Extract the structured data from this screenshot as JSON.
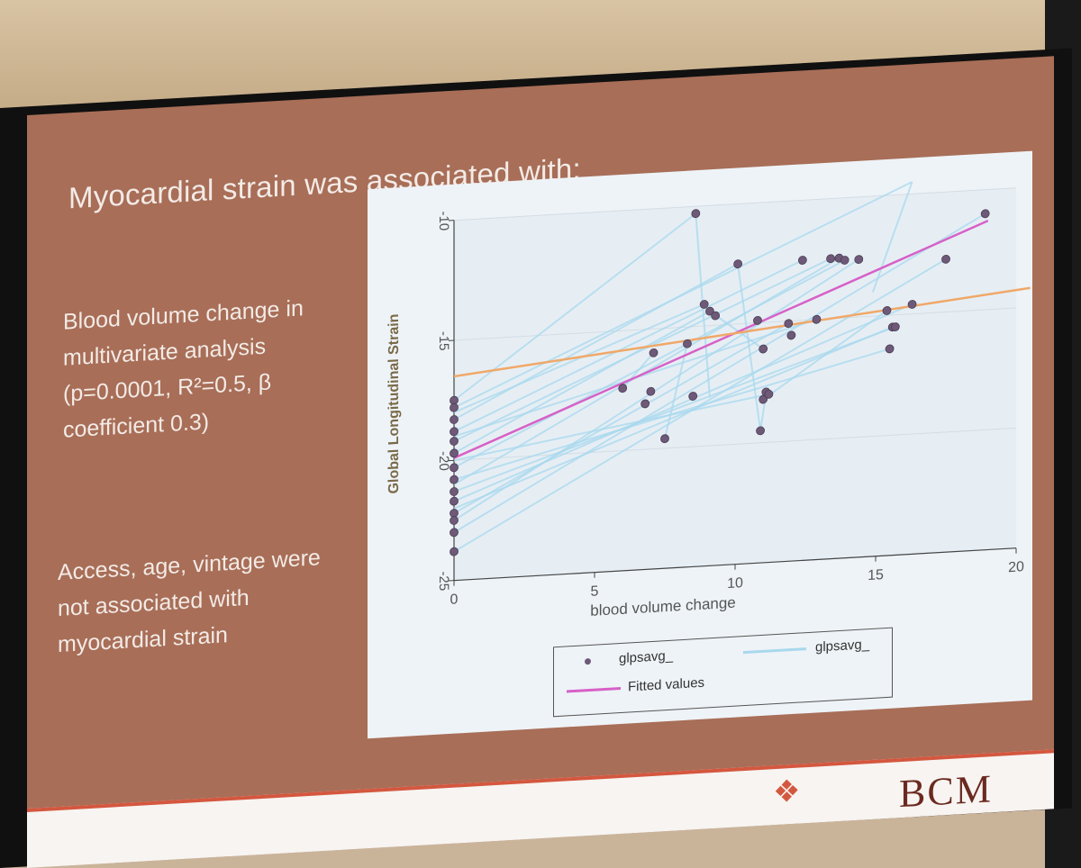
{
  "slide": {
    "heading": "Myocardial strain was associated with:",
    "bullet1": "Blood volume change in multivariate analysis (p=0.0001, R²=0.5, β coefficient 0.3)",
    "bullet2": "Access, age, vintage were not associated with myocardial strain",
    "footer_logo": "BCM",
    "colors": {
      "slide_bg": "#a86e58",
      "accent": "#d4573f"
    }
  },
  "chart_data": {
    "type": "scatter",
    "title": "",
    "xlabel": "blood volume change",
    "ylabel": "Global Longitudinal Strain",
    "xlim": [
      0,
      20
    ],
    "ylim": [
      -25,
      -10
    ],
    "xticks": [
      "0",
      "5",
      "10",
      "15",
      "20"
    ],
    "yticks": [
      "-25",
      "-20",
      "-15",
      "-10"
    ],
    "grid": true,
    "legend_position": "bottom",
    "legend": {
      "points_label": "glpsavg_",
      "lines_label": "glpsavg_",
      "fit_label": "Fitted values"
    },
    "series": [
      {
        "name": "glpsavg_",
        "kind": "points",
        "color": "#6e5a78",
        "x": [
          0,
          0,
          0,
          0,
          0,
          0,
          0,
          0,
          0,
          0,
          0,
          0,
          0,
          0,
          6.0,
          6.8,
          7.0,
          7.1,
          7.5,
          8.3,
          8.5,
          8.6,
          8.9,
          9.1,
          9.3,
          10.1,
          10.8,
          10.9,
          11.0,
          11.0,
          11.1,
          11.2,
          11.9,
          12.0,
          12.4,
          12.9,
          13.4,
          13.7,
          13.9,
          14.4,
          15.4,
          15.5,
          15.6,
          15.7,
          16.3,
          17.5,
          18.9
        ],
        "y": [
          -17.5,
          -17.8,
          -18.3,
          -18.8,
          -19.2,
          -19.7,
          -20.3,
          -20.8,
          -21.3,
          -21.7,
          -22.2,
          -22.5,
          -23.0,
          -23.8,
          -17.4,
          -18.1,
          -17.6,
          -16.0,
          -19.6,
          -15.7,
          -17.9,
          -10.3,
          -14.1,
          -14.4,
          -14.6,
          -12.5,
          -14.9,
          -19.5,
          -16.1,
          -18.2,
          -17.9,
          -18.0,
          -15.1,
          -15.6,
          -12.5,
          -15.0,
          -12.5,
          -12.5,
          -12.6,
          -12.6,
          -14.8,
          -16.4,
          -15.5,
          -15.5,
          -14.6,
          -12.8,
          -11.0
        ]
      },
      {
        "name": "Fitted values",
        "kind": "fit",
        "color": "#d760c7",
        "x": [
          0,
          19
        ],
        "y": [
          -19.9,
          -11.3
        ]
      },
      {
        "name": "",
        "kind": "reference",
        "color": "#f0a868",
        "x": [
          0,
          20.5
        ],
        "y": [
          -16.5,
          -14.2
        ]
      }
    ],
    "connecting_lines": {
      "color": "#a8d8ee",
      "segments": [
        [
          [
            0,
            -17.5
          ],
          [
            8.6,
            -10.3
          ]
        ],
        [
          [
            8.6,
            -10.3
          ],
          [
            9.1,
            -18.0
          ]
        ],
        [
          [
            0,
            -17.8
          ],
          [
            16.3,
            -9.5
          ]
        ],
        [
          [
            16.3,
            -9.5
          ],
          [
            14.9,
            -14.0
          ]
        ],
        [
          [
            0,
            -18.3
          ],
          [
            10.1,
            -12.5
          ]
        ],
        [
          [
            10.1,
            -12.5
          ],
          [
            10.9,
            -19.5
          ]
        ],
        [
          [
            0,
            -18.8
          ],
          [
            12.4,
            -12.5
          ]
        ],
        [
          [
            0,
            -19.2
          ],
          [
            13.4,
            -12.5
          ]
        ],
        [
          [
            0,
            -19.7
          ],
          [
            9.1,
            -14.4
          ]
        ],
        [
          [
            9.1,
            -14.4
          ],
          [
            11.0,
            -16.1
          ]
        ],
        [
          [
            0,
            -20.3
          ],
          [
            13.9,
            -12.6
          ]
        ],
        [
          [
            0,
            -20.8
          ],
          [
            15.5,
            -16.4
          ]
        ],
        [
          [
            0,
            -21.3
          ],
          [
            15.7,
            -15.5
          ]
        ],
        [
          [
            0,
            -21.7
          ],
          [
            16.3,
            -14.6
          ]
        ],
        [
          [
            0,
            -22.2
          ],
          [
            11.9,
            -15.1
          ]
        ],
        [
          [
            0,
            -22.5
          ],
          [
            14.4,
            -12.6
          ]
        ],
        [
          [
            0,
            -23.0
          ],
          [
            18.9,
            -11.0
          ]
        ],
        [
          [
            0,
            -23.8
          ],
          [
            17.5,
            -12.8
          ]
        ],
        [
          [
            6.0,
            -17.4
          ],
          [
            7.1,
            -16.0
          ]
        ],
        [
          [
            7.5,
            -19.6
          ],
          [
            8.3,
            -15.7
          ]
        ],
        [
          [
            10.9,
            -19.5
          ],
          [
            11.1,
            -18.0
          ]
        ],
        [
          [
            11.0,
            -18.2
          ],
          [
            15.4,
            -14.8
          ]
        ],
        [
          [
            0,
            -19.0
          ],
          [
            12.9,
            -15.0
          ]
        ],
        [
          [
            0,
            -20.0
          ],
          [
            11.2,
            -18.0
          ]
        ],
        [
          [
            0,
            -18.0
          ],
          [
            8.9,
            -14.1
          ]
        ],
        [
          [
            0,
            -21.0
          ],
          [
            13.7,
            -12.5
          ]
        ],
        [
          [
            0,
            -22.0
          ],
          [
            15.6,
            -15.5
          ]
        ]
      ]
    }
  }
}
